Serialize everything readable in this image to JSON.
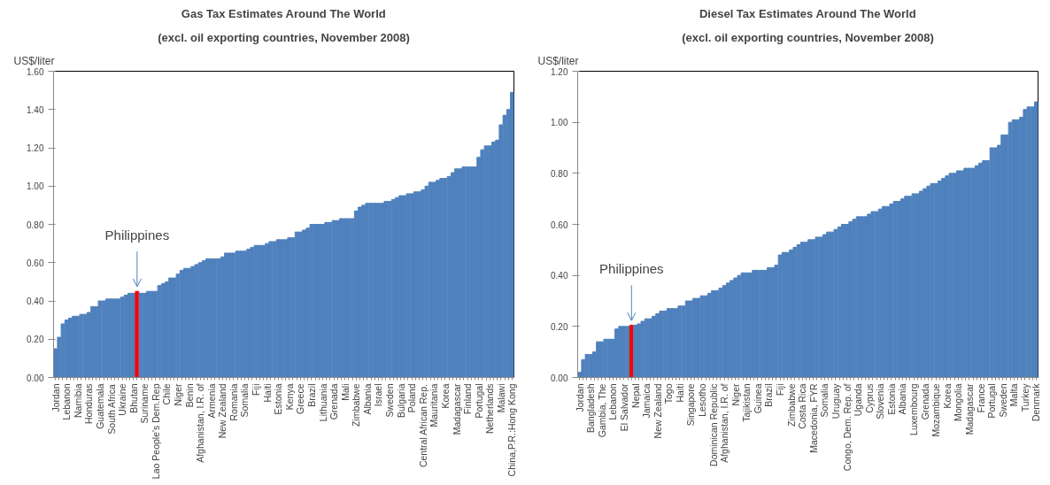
{
  "chart_data": [
    {
      "type": "bar",
      "title": "Gas Tax Estimates Around The World",
      "subtitle": "(excl. oil exporting countries, November 2008)",
      "ylabel": "US$/liter",
      "categories": [
        "Jordan",
        null,
        null,
        "Lebanon",
        null,
        null,
        "Namibia",
        null,
        null,
        "Honduras",
        null,
        null,
        "Guatemala",
        null,
        null,
        "South Africa",
        null,
        null,
        "Ukraine",
        null,
        null,
        "Bhutan",
        null,
        null,
        "Suriname",
        null,
        null,
        "Lao People's Dem.Rep",
        null,
        null,
        "Chile",
        null,
        null,
        "Niger",
        null,
        null,
        "Benin",
        null,
        null,
        "Afghanistan, I.R. of",
        null,
        null,
        "Armenia",
        null,
        null,
        "New Zealand",
        null,
        null,
        "Romania",
        null,
        null,
        "Somalia",
        null,
        null,
        "Fiji",
        null,
        null,
        "Haiti",
        null,
        null,
        "Estonia",
        null,
        null,
        "Kenya",
        null,
        null,
        "Greece",
        null,
        null,
        "Brazil",
        null,
        null,
        "Lithuania",
        null,
        null,
        "Grenada",
        null,
        null,
        "Mali",
        null,
        null,
        "Zimbabwe",
        null,
        null,
        "Albania",
        null,
        null,
        "Israel",
        null,
        null,
        "Sweden",
        null,
        null,
        "Bulgaria",
        null,
        null,
        "Poland",
        null,
        null,
        "Central African Rep.",
        null,
        null,
        "Mauritania",
        null,
        null,
        "Korea",
        null,
        null,
        "Madagascar",
        null,
        null,
        "Finland",
        null,
        null,
        "Portugal",
        null,
        null,
        "Netherlands",
        null,
        null,
        "Malawi",
        null,
        null,
        "China,P.R.:Hong Kong"
      ],
      "values": [
        0.15,
        0.21,
        0.28,
        0.3,
        0.31,
        0.32,
        0.32,
        0.33,
        0.33,
        0.34,
        0.37,
        0.37,
        0.4,
        0.4,
        0.41,
        0.41,
        0.41,
        0.41,
        0.42,
        0.43,
        0.44,
        0.44,
        0.45,
        0.44,
        0.44,
        0.45,
        0.45,
        0.45,
        0.48,
        0.49,
        0.5,
        0.52,
        0.52,
        0.54,
        0.56,
        0.57,
        0.57,
        0.58,
        0.59,
        0.6,
        0.61,
        0.62,
        0.62,
        0.62,
        0.62,
        0.63,
        0.65,
        0.65,
        0.65,
        0.66,
        0.66,
        0.66,
        0.67,
        0.68,
        0.69,
        0.69,
        0.69,
        0.7,
        0.71,
        0.71,
        0.72,
        0.72,
        0.72,
        0.73,
        0.73,
        0.76,
        0.76,
        0.77,
        0.78,
        0.8,
        0.8,
        0.8,
        0.8,
        0.81,
        0.81,
        0.82,
        0.82,
        0.83,
        0.83,
        0.83,
        0.83,
        0.87,
        0.89,
        0.9,
        0.91,
        0.91,
        0.91,
        0.91,
        0.91,
        0.92,
        0.92,
        0.93,
        0.94,
        0.95,
        0.95,
        0.96,
        0.96,
        0.97,
        0.97,
        0.98,
        1.0,
        1.02,
        1.02,
        1.03,
        1.04,
        1.04,
        1.05,
        1.07,
        1.09,
        1.09,
        1.1,
        1.1,
        1.1,
        1.1,
        1.15,
        1.19,
        1.21,
        1.21,
        1.23,
        1.24,
        1.32,
        1.37,
        1.4,
        1.49
      ],
      "colors": [
        "#4f81bd",
        "#4f81bd",
        "#4f81bd",
        "#4f81bd",
        "#4f81bd",
        "#4f81bd",
        "#4f81bd",
        "#4f81bd",
        "#4f81bd",
        "#4f81bd",
        "#4f81bd",
        "#4f81bd",
        "#4f81bd",
        "#4f81bd",
        "#4f81bd",
        "#4f81bd",
        "#4f81bd",
        "#4f81bd",
        "#4f81bd",
        "#4f81bd",
        "#4f81bd",
        "#4f81bd",
        "#ff0000",
        "#4f81bd",
        "#4f81bd",
        "#4f81bd",
        "#4f81bd",
        "#4f81bd",
        "#4f81bd",
        "#4f81bd",
        "#4f81bd",
        "#4f81bd",
        "#4f81bd",
        "#4f81bd",
        "#4f81bd",
        "#4f81bd",
        "#4f81bd",
        "#4f81bd",
        "#4f81bd",
        "#4f81bd",
        "#4f81bd",
        "#4f81bd",
        "#4f81bd",
        "#4f81bd",
        "#4f81bd",
        "#4f81bd",
        "#4f81bd",
        "#4f81bd",
        "#4f81bd",
        "#4f81bd",
        "#4f81bd",
        "#4f81bd",
        "#4f81bd",
        "#4f81bd",
        "#4f81bd",
        "#4f81bd",
        "#4f81bd",
        "#4f81bd",
        "#4f81bd",
        "#4f81bd",
        "#4f81bd",
        "#4f81bd",
        "#4f81bd",
        "#4f81bd",
        "#4f81bd",
        "#4f81bd",
        "#4f81bd",
        "#4f81bd",
        "#4f81bd",
        "#4f81bd",
        "#4f81bd",
        "#4f81bd",
        "#4f81bd",
        "#4f81bd",
        "#4f81bd",
        "#4f81bd",
        "#4f81bd",
        "#4f81bd",
        "#4f81bd",
        "#4f81bd",
        "#4f81bd",
        "#4f81bd",
        "#4f81bd",
        "#4f81bd",
        "#4f81bd",
        "#4f81bd",
        "#4f81bd",
        "#4f81bd",
        "#4f81bd",
        "#4f81bd",
        "#4f81bd",
        "#4f81bd",
        "#4f81bd",
        "#4f81bd",
        "#4f81bd",
        "#4f81bd",
        "#4f81bd",
        "#4f81bd",
        "#4f81bd",
        "#4f81bd",
        "#4f81bd",
        "#4f81bd",
        "#4f81bd",
        "#4f81bd",
        "#4f81bd",
        "#4f81bd",
        "#4f81bd",
        "#4f81bd",
        "#4f81bd",
        "#4f81bd",
        "#4f81bd",
        "#4f81bd",
        "#4f81bd",
        "#4f81bd",
        "#4f81bd",
        "#4f81bd",
        "#4f81bd",
        "#4f81bd",
        "#4f81bd",
        "#4f81bd",
        "#4f81bd",
        "#4f81bd",
        "#4f81bd",
        "#4f81bd"
      ],
      "annotations": [
        {
          "text": "Philippines",
          "y": 0.45
        }
      ],
      "ylim": [
        0,
        1.6
      ],
      "yticks": [
        {
          "value": 0,
          "label": "0.00"
        },
        {
          "value": 0.2,
          "label": "0.20"
        },
        {
          "value": 0.4,
          "label": "0.40"
        },
        {
          "value": 0.6,
          "label": "0.60"
        },
        {
          "value": 0.8,
          "label": "0.80"
        },
        {
          "value": 1.0,
          "label": "1.00"
        },
        {
          "value": 1.2,
          "label": "1.20"
        },
        {
          "value": 1.4,
          "label": "1.40"
        },
        {
          "value": 1.6,
          "label": "1.60"
        }
      ],
      "grid": false
    },
    {
      "type": "bar",
      "title": "Diesel Tax Estimates Around The World",
      "subtitle": "(excl. oil exporting countries, November 2008)",
      "ylabel": "US$/liter",
      "categories": [
        "Jordan",
        null,
        null,
        "Bangladesh",
        null,
        null,
        "Gambia, The",
        null,
        null,
        "Lebanon",
        null,
        null,
        "El Salvador",
        null,
        null,
        "Nepal",
        null,
        null,
        "Jamaica",
        null,
        null,
        "New Zealand",
        null,
        null,
        "Togo",
        null,
        null,
        "Haiti",
        null,
        null,
        "Singapore",
        null,
        null,
        "Lesotho",
        null,
        null,
        "Dominican Republic",
        null,
        null,
        "Afghanistan, I.R. of",
        null,
        null,
        "Niger",
        null,
        null,
        "Tajikistan",
        null,
        null,
        "Guinea",
        null,
        null,
        "Brazil",
        null,
        null,
        "Fiji",
        null,
        null,
        "Zimbabwe",
        null,
        null,
        "Costa Rica",
        null,
        null,
        "Macedonia, FYR",
        null,
        null,
        "Somalia",
        null,
        null,
        "Uruguay",
        null,
        null,
        "Congo, Dem. Rep. of",
        null,
        null,
        "Uganda",
        null,
        null,
        "Cyprus",
        null,
        null,
        "Slovenia",
        null,
        null,
        "Estonia",
        null,
        null,
        "Albania",
        null,
        null,
        "Luxembourg",
        null,
        null,
        "Grenada",
        null,
        null,
        "Mozambique",
        null,
        null,
        "Korea",
        null,
        null,
        "Mongolia",
        null,
        null,
        "Madagascar",
        null,
        null,
        "France",
        null,
        null,
        "Portugal",
        null,
        null,
        "Sweden",
        null,
        null,
        "Malta",
        null,
        null,
        "Turkey",
        null,
        null,
        "Denmark"
      ],
      "values": [
        0.02,
        0.07,
        0.09,
        0.09,
        0.1,
        0.14,
        0.14,
        0.15,
        0.15,
        0.15,
        0.19,
        0.2,
        0.2,
        0.2,
        0.205,
        0.205,
        0.21,
        0.22,
        0.23,
        0.23,
        0.24,
        0.25,
        0.26,
        0.26,
        0.27,
        0.27,
        0.27,
        0.28,
        0.28,
        0.3,
        0.3,
        0.31,
        0.31,
        0.32,
        0.32,
        0.33,
        0.34,
        0.34,
        0.35,
        0.36,
        0.37,
        0.38,
        0.39,
        0.4,
        0.41,
        0.41,
        0.41,
        0.42,
        0.42,
        0.42,
        0.42,
        0.43,
        0.43,
        0.44,
        0.48,
        0.49,
        0.49,
        0.5,
        0.51,
        0.52,
        0.53,
        0.53,
        0.54,
        0.54,
        0.55,
        0.55,
        0.56,
        0.57,
        0.57,
        0.58,
        0.59,
        0.6,
        0.6,
        0.61,
        0.62,
        0.63,
        0.63,
        0.63,
        0.64,
        0.65,
        0.65,
        0.66,
        0.67,
        0.67,
        0.68,
        0.69,
        0.69,
        0.7,
        0.71,
        0.71,
        0.72,
        0.72,
        0.73,
        0.74,
        0.75,
        0.76,
        0.76,
        0.77,
        0.78,
        0.79,
        0.8,
        0.8,
        0.81,
        0.81,
        0.82,
        0.82,
        0.82,
        0.83,
        0.84,
        0.85,
        0.85,
        0.9,
        0.9,
        0.91,
        0.95,
        0.95,
        1.0,
        1.01,
        1.01,
        1.02,
        1.05,
        1.06,
        1.06,
        1.08
      ],
      "colors": [
        "#4f81bd",
        "#4f81bd",
        "#4f81bd",
        "#4f81bd",
        "#4f81bd",
        "#4f81bd",
        "#4f81bd",
        "#4f81bd",
        "#4f81bd",
        "#4f81bd",
        "#4f81bd",
        "#4f81bd",
        "#4f81bd",
        "#4f81bd",
        "#ff0000",
        "#4f81bd",
        "#4f81bd",
        "#4f81bd",
        "#4f81bd",
        "#4f81bd",
        "#4f81bd",
        "#4f81bd",
        "#4f81bd",
        "#4f81bd",
        "#4f81bd",
        "#4f81bd",
        "#4f81bd",
        "#4f81bd",
        "#4f81bd",
        "#4f81bd",
        "#4f81bd",
        "#4f81bd",
        "#4f81bd",
        "#4f81bd",
        "#4f81bd",
        "#4f81bd",
        "#4f81bd",
        "#4f81bd",
        "#4f81bd",
        "#4f81bd",
        "#4f81bd",
        "#4f81bd",
        "#4f81bd",
        "#4f81bd",
        "#4f81bd",
        "#4f81bd",
        "#4f81bd",
        "#4f81bd",
        "#4f81bd",
        "#4f81bd",
        "#4f81bd",
        "#4f81bd",
        "#4f81bd",
        "#4f81bd",
        "#4f81bd",
        "#4f81bd",
        "#4f81bd",
        "#4f81bd",
        "#4f81bd",
        "#4f81bd",
        "#4f81bd",
        "#4f81bd",
        "#4f81bd",
        "#4f81bd",
        "#4f81bd",
        "#4f81bd",
        "#4f81bd",
        "#4f81bd",
        "#4f81bd",
        "#4f81bd",
        "#4f81bd",
        "#4f81bd",
        "#4f81bd",
        "#4f81bd",
        "#4f81bd",
        "#4f81bd",
        "#4f81bd",
        "#4f81bd",
        "#4f81bd",
        "#4f81bd",
        "#4f81bd",
        "#4f81bd",
        "#4f81bd",
        "#4f81bd",
        "#4f81bd",
        "#4f81bd",
        "#4f81bd",
        "#4f81bd",
        "#4f81bd",
        "#4f81bd",
        "#4f81bd",
        "#4f81bd",
        "#4f81bd",
        "#4f81bd",
        "#4f81bd",
        "#4f81bd",
        "#4f81bd",
        "#4f81bd",
        "#4f81bd",
        "#4f81bd",
        "#4f81bd",
        "#4f81bd",
        "#4f81bd",
        "#4f81bd",
        "#4f81bd",
        "#4f81bd",
        "#4f81bd",
        "#4f81bd",
        "#4f81bd",
        "#4f81bd",
        "#4f81bd",
        "#4f81bd",
        "#4f81bd",
        "#4f81bd",
        "#4f81bd",
        "#4f81bd",
        "#4f81bd",
        "#4f81bd",
        "#4f81bd",
        "#4f81bd",
        "#4f81bd",
        "#4f81bd",
        "#4f81bd",
        "#4f81bd"
      ],
      "annotations": [
        {
          "text": "Philippines",
          "y": 0.205
        }
      ],
      "ylim": [
        0,
        1.2
      ],
      "yticks": [
        {
          "value": 0,
          "label": "0.00"
        },
        {
          "value": 0.2,
          "label": "0.20"
        },
        {
          "value": 0.4,
          "label": "0.40"
        },
        {
          "value": 0.6,
          "label": "0.60"
        },
        {
          "value": 0.8,
          "label": "0.80"
        },
        {
          "value": 1.0,
          "label": "1.00"
        },
        {
          "value": 1.2,
          "label": "1.20"
        }
      ],
      "grid": false
    }
  ]
}
